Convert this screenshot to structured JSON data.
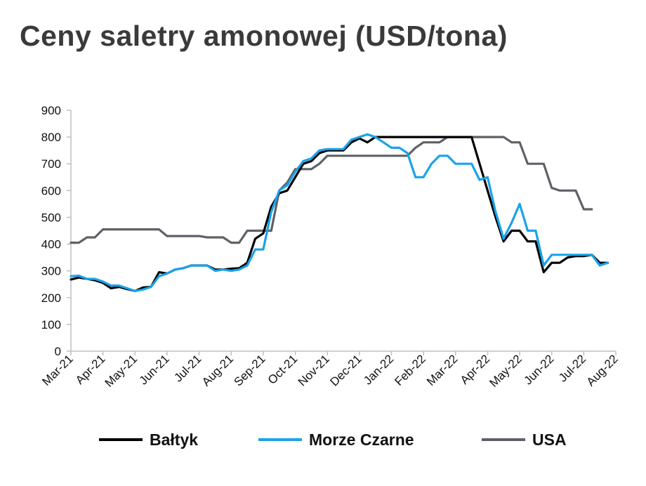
{
  "chart_data": {
    "type": "line",
    "title": "Ceny saletry amonowej (USD/tona)",
    "xlabel": "",
    "ylabel": "",
    "ylim": [
      0,
      900
    ],
    "yticks": [
      0,
      100,
      200,
      300,
      400,
      500,
      600,
      700,
      800,
      900
    ],
    "categories": [
      "Mar-21",
      "Apr-21",
      "May-21",
      "Jun-21",
      "Jul-21",
      "Aug-21",
      "Sep-21",
      "Oct-21",
      "Nov-21",
      "Dec-21",
      "Jan-22",
      "Feb-22",
      "Mar-22",
      "Apr-22",
      "May-22",
      "Jun-22",
      "Jul-22",
      "Aug-22"
    ],
    "grid": false,
    "legend": "bottom",
    "series": [
      {
        "name": "Bałtyk",
        "color": "#000000",
        "points": [
          [
            0,
            268
          ],
          [
            0.25,
            275
          ],
          [
            0.5,
            270
          ],
          [
            0.75,
            265
          ],
          [
            1,
            255
          ],
          [
            1.25,
            235
          ],
          [
            1.5,
            240
          ],
          [
            1.75,
            232
          ],
          [
            2,
            225
          ],
          [
            2.25,
            238
          ],
          [
            2.5,
            240
          ],
          [
            2.75,
            295
          ],
          [
            3,
            290
          ],
          [
            3.25,
            305
          ],
          [
            3.5,
            310
          ],
          [
            3.75,
            320
          ],
          [
            4,
            320
          ],
          [
            4.25,
            320
          ],
          [
            4.5,
            305
          ],
          [
            4.75,
            305
          ],
          [
            5,
            308
          ],
          [
            5.25,
            310
          ],
          [
            5.5,
            330
          ],
          [
            5.75,
            420
          ],
          [
            6,
            440
          ],
          [
            6.25,
            540
          ],
          [
            6.5,
            590
          ],
          [
            6.75,
            600
          ],
          [
            7,
            650
          ],
          [
            7.25,
            700
          ],
          [
            7.5,
            710
          ],
          [
            7.75,
            740
          ],
          [
            8,
            750
          ],
          [
            8.25,
            750
          ],
          [
            8.5,
            750
          ],
          [
            8.75,
            780
          ],
          [
            9,
            795
          ],
          [
            9.25,
            780
          ],
          [
            9.5,
            800
          ],
          [
            9.75,
            800
          ],
          [
            10,
            800
          ],
          [
            10.25,
            800
          ],
          [
            10.5,
            800
          ],
          [
            10.75,
            800
          ],
          [
            11,
            800
          ],
          [
            11.25,
            800
          ],
          [
            11.5,
            800
          ],
          [
            11.75,
            800
          ],
          [
            12,
            800
          ],
          [
            12.25,
            800
          ],
          [
            12.5,
            800
          ],
          [
            12.75,
            700
          ],
          [
            13,
            600
          ],
          [
            13.25,
            500
          ],
          [
            13.5,
            410
          ],
          [
            13.75,
            450
          ],
          [
            14,
            450
          ],
          [
            14.25,
            410
          ],
          [
            14.5,
            410
          ],
          [
            14.75,
            295
          ],
          [
            15,
            330
          ],
          [
            15.25,
            330
          ],
          [
            15.5,
            350
          ],
          [
            15.75,
            355
          ],
          [
            16,
            355
          ],
          [
            16.25,
            360
          ],
          [
            16.5,
            330
          ],
          [
            16.75,
            330
          ]
        ]
      },
      {
        "name": "Morze Czarne",
        "color": "#1aa3e8",
        "points": [
          [
            0,
            280
          ],
          [
            0.25,
            282
          ],
          [
            0.5,
            270
          ],
          [
            0.75,
            270
          ],
          [
            1,
            260
          ],
          [
            1.25,
            245
          ],
          [
            1.5,
            245
          ],
          [
            1.75,
            235
          ],
          [
            2,
            225
          ],
          [
            2.25,
            230
          ],
          [
            2.5,
            240
          ],
          [
            2.75,
            280
          ],
          [
            3,
            290
          ],
          [
            3.25,
            305
          ],
          [
            3.5,
            310
          ],
          [
            3.75,
            320
          ],
          [
            4,
            320
          ],
          [
            4.25,
            320
          ],
          [
            4.5,
            300
          ],
          [
            4.75,
            305
          ],
          [
            5,
            300
          ],
          [
            5.25,
            305
          ],
          [
            5.5,
            320
          ],
          [
            5.75,
            380
          ],
          [
            6,
            380
          ],
          [
            6.25,
            520
          ],
          [
            6.5,
            600
          ],
          [
            6.75,
            620
          ],
          [
            7,
            670
          ],
          [
            7.25,
            710
          ],
          [
            7.5,
            720
          ],
          [
            7.75,
            750
          ],
          [
            8,
            755
          ],
          [
            8.25,
            755
          ],
          [
            8.5,
            755
          ],
          [
            8.75,
            790
          ],
          [
            9,
            800
          ],
          [
            9.25,
            810
          ],
          [
            9.5,
            800
          ],
          [
            9.75,
            780
          ],
          [
            10,
            760
          ],
          [
            10.25,
            760
          ],
          [
            10.5,
            740
          ],
          [
            10.75,
            650
          ],
          [
            11,
            650
          ],
          [
            11.25,
            700
          ],
          [
            11.5,
            730
          ],
          [
            11.75,
            730
          ],
          [
            12,
            700
          ],
          [
            12.25,
            700
          ],
          [
            12.5,
            700
          ],
          [
            12.75,
            640
          ],
          [
            13,
            650
          ],
          [
            13.25,
            520
          ],
          [
            13.5,
            420
          ],
          [
            13.75,
            480
          ],
          [
            14,
            550
          ],
          [
            14.25,
            450
          ],
          [
            14.5,
            450
          ],
          [
            14.75,
            320
          ],
          [
            15,
            360
          ],
          [
            15.25,
            360
          ],
          [
            15.5,
            360
          ],
          [
            15.75,
            360
          ],
          [
            16,
            360
          ],
          [
            16.25,
            360
          ],
          [
            16.5,
            320
          ],
          [
            16.75,
            330
          ]
        ]
      },
      {
        "name": "USA",
        "color": "#606068",
        "points": [
          [
            0,
            405
          ],
          [
            0.25,
            405
          ],
          [
            0.5,
            425
          ],
          [
            0.75,
            425
          ],
          [
            1,
            455
          ],
          [
            1.25,
            455
          ],
          [
            1.5,
            455
          ],
          [
            1.75,
            455
          ],
          [
            2,
            455
          ],
          [
            2.25,
            455
          ],
          [
            2.5,
            455
          ],
          [
            2.75,
            455
          ],
          [
            3,
            430
          ],
          [
            3.25,
            430
          ],
          [
            3.5,
            430
          ],
          [
            3.75,
            430
          ],
          [
            4,
            430
          ],
          [
            4.25,
            425
          ],
          [
            4.5,
            425
          ],
          [
            4.75,
            425
          ],
          [
            5,
            405
          ],
          [
            5.25,
            405
          ],
          [
            5.5,
            450
          ],
          [
            5.75,
            450
          ],
          [
            6,
            450
          ],
          [
            6.25,
            450
          ],
          [
            6.5,
            600
          ],
          [
            6.75,
            630
          ],
          [
            7,
            680
          ],
          [
            7.25,
            680
          ],
          [
            7.5,
            680
          ],
          [
            7.75,
            700
          ],
          [
            8,
            730
          ],
          [
            8.25,
            730
          ],
          [
            8.5,
            730
          ],
          [
            8.75,
            730
          ],
          [
            9,
            730
          ],
          [
            9.25,
            730
          ],
          [
            9.5,
            730
          ],
          [
            9.75,
            730
          ],
          [
            10,
            730
          ],
          [
            10.25,
            730
          ],
          [
            10.5,
            730
          ],
          [
            10.75,
            760
          ],
          [
            11,
            780
          ],
          [
            11.25,
            780
          ],
          [
            11.5,
            780
          ],
          [
            11.75,
            800
          ],
          [
            12,
            800
          ],
          [
            12.25,
            800
          ],
          [
            12.5,
            800
          ],
          [
            12.75,
            800
          ],
          [
            13,
            800
          ],
          [
            13.25,
            800
          ],
          [
            13.5,
            800
          ],
          [
            13.75,
            780
          ],
          [
            14,
            780
          ],
          [
            14.25,
            700
          ],
          [
            14.5,
            700
          ],
          [
            14.75,
            700
          ],
          [
            15,
            610
          ],
          [
            15.25,
            600
          ],
          [
            15.5,
            600
          ],
          [
            15.75,
            600
          ],
          [
            16,
            530
          ],
          [
            16.25,
            530
          ]
        ]
      }
    ]
  }
}
